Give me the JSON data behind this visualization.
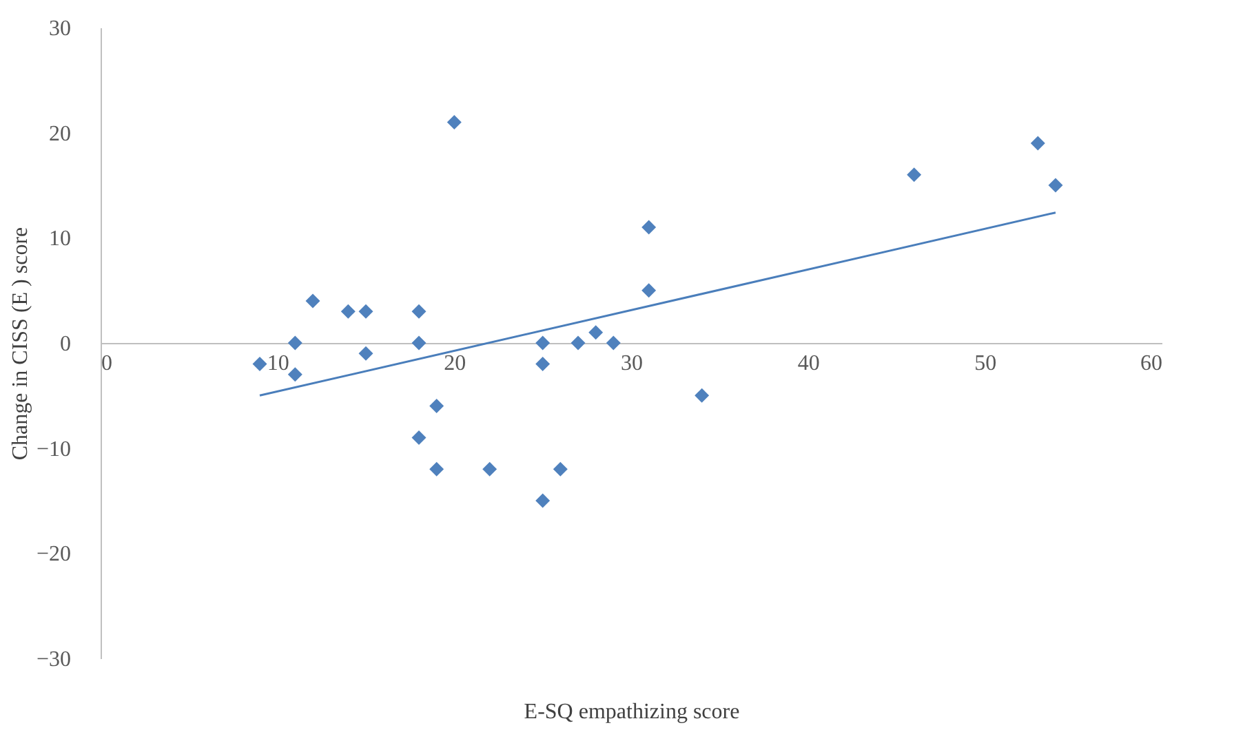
{
  "chart_data": {
    "type": "scatter",
    "xlabel": "E-SQ empathizing score",
    "ylabel": "Change in CISS (E ) score",
    "xlim": [
      0,
      60
    ],
    "xticks": [
      0,
      10,
      20,
      30,
      40,
      50,
      60
    ],
    "ylim": [
      -30,
      30
    ],
    "yticks": [
      -30,
      -20,
      -10,
      0,
      10,
      20,
      30
    ],
    "grid": false,
    "series": [
      {
        "marker": "diamond",
        "color": "#4f81bd",
        "x": [
          9,
          11,
          11,
          12,
          14,
          15,
          15,
          18,
          18,
          18,
          19,
          19,
          20,
          22,
          25,
          25,
          25,
          26,
          27,
          28,
          29,
          31,
          31,
          34,
          46,
          53,
          54
        ],
        "values": [
          -2,
          0,
          -3,
          4,
          3,
          3,
          -1,
          3,
          0,
          -9,
          -6,
          -12,
          21,
          -12,
          0,
          -2,
          -15,
          -12,
          0,
          1,
          0,
          11,
          5,
          -5,
          16,
          19,
          15
        ]
      },
      {
        "type": "line",
        "marker": "none",
        "color": "#4a7ebb",
        "line_style": "solid",
        "x": [
          9,
          54
        ],
        "values": [
          -5,
          12.4
        ]
      }
    ]
  }
}
